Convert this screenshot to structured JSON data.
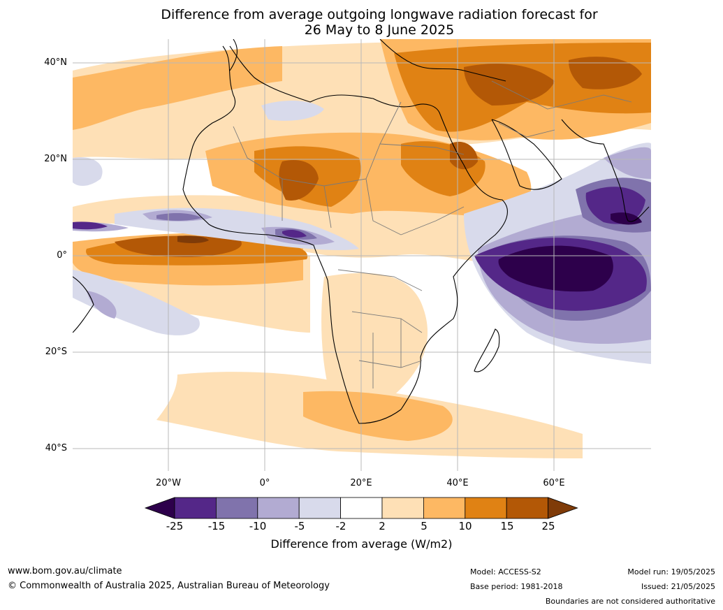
{
  "title": {
    "line1": "Difference from average outgoing longwave radiation forecast for",
    "line2": "26 May to 8 June 2025"
  },
  "axes": {
    "lat_ticks": [
      "40°N",
      "20°N",
      "0°",
      "20°S",
      "40°S"
    ],
    "lon_ticks": [
      "20°W",
      "0°",
      "20°E",
      "40°E",
      "60°E"
    ]
  },
  "colorbar": {
    "label": "Difference from average (W/m2)",
    "ticks": [
      "-25",
      "-15",
      "-10",
      "-5",
      "-2",
      "2",
      "5",
      "10",
      "15",
      "25"
    ],
    "colors": [
      "#2d004b",
      "#542788",
      "#8073ac",
      "#b2abd2",
      "#d8daeb",
      "#ffffff",
      "#fee0b6",
      "#fdb863",
      "#e08214",
      "#b35806",
      "#7f3b08"
    ]
  },
  "footer": {
    "url": "www.bom.gov.au/climate",
    "copyright": "© Commonwealth of Australia 2025, Australian Bureau of Meteorology",
    "model": "Model: ACCESS-S2",
    "base_period": "Base period: 1981-2018",
    "model_run": "Model run: 19/05/2025",
    "issued": "Issued: 21/05/2025",
    "disclaimer": "Boundaries are not considered authoritative"
  }
}
